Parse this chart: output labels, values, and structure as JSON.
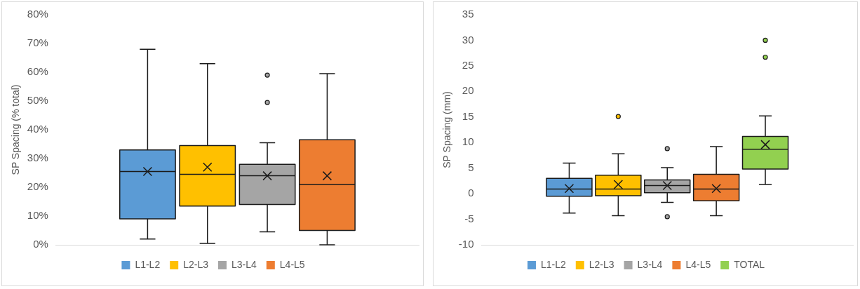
{
  "chart_data": [
    {
      "type": "box",
      "ylabel": "SP Spacing (% total)",
      "categories": [
        null
      ],
      "ylim": [
        0,
        80
      ],
      "yticks": [
        {
          "value": 0,
          "label": "0%"
        },
        {
          "value": 10,
          "label": "10%"
        },
        {
          "value": 20,
          "label": "20%"
        },
        {
          "value": 30,
          "label": "30%"
        },
        {
          "value": 40,
          "label": "40%"
        },
        {
          "value": 50,
          "label": "50%"
        },
        {
          "value": 60,
          "label": "60%"
        },
        {
          "value": 70,
          "label": "70%"
        },
        {
          "value": 80,
          "label": "80%"
        }
      ],
      "grid": false,
      "legend": "bottom",
      "tick_labels": "y",
      "series": [
        {
          "name": "L1-L2",
          "color": "#5b9bd5",
          "boxes": [
            {
              "low": 2,
              "q1": 9,
              "median": 25.5,
              "q3": 33,
              "high": 68,
              "mean": 25.5
            }
          ]
        },
        {
          "name": "L2-L3",
          "color": "#ffc000",
          "boxes": [
            {
              "low": 0.5,
              "q1": 13.5,
              "median": 24.5,
              "q3": 34.5,
              "high": 63,
              "mean": 27
            }
          ]
        },
        {
          "name": "L3-L4",
          "color": "#a5a5a5",
          "boxes": [
            {
              "low": 4.5,
              "q1": 14,
              "median": 24,
              "q3": 28,
              "high": 35.5,
              "mean": 24,
              "outliers": [
                49.5,
                59
              ]
            }
          ]
        },
        {
          "name": "L4-L5",
          "color": "#ed7d31",
          "boxes": [
            {
              "low": 0,
              "q1": 5,
              "median": 21,
              "q3": 36.5,
              "high": 59.5,
              "mean": 24
            }
          ]
        }
      ]
    },
    {
      "type": "box",
      "ylabel": "SP Spacing (mm)",
      "categories": [
        null
      ],
      "ylim": [
        -10,
        35
      ],
      "yticks": [
        -10,
        -5,
        0,
        5,
        10,
        15,
        20,
        25,
        30,
        35
      ],
      "grid": false,
      "legend": "bottom",
      "tick_labels": "y",
      "series": [
        {
          "name": "L1-L2",
          "color": "#5b9bd5",
          "boxes": [
            {
              "low": -3.8,
              "q1": -0.5,
              "median": 0.9,
              "q3": 3,
              "high": 6,
              "mean": 1
            }
          ]
        },
        {
          "name": "L2-L3",
          "color": "#ffc000",
          "boxes": [
            {
              "low": -4.3,
              "q1": -0.4,
              "median": 0.9,
              "q3": 3.6,
              "high": 7.8,
              "mean": 1.8,
              "outliers": [
                15.1
              ]
            }
          ]
        },
        {
          "name": "L3-L4",
          "color": "#a5a5a5",
          "boxes": [
            {
              "low": -1.7,
              "q1": 0.2,
              "median": 1.6,
              "q3": 2.7,
              "high": 5.1,
              "mean": 1.6,
              "outliers": [
                8.8,
                -4.5
              ]
            }
          ]
        },
        {
          "name": "L4-L5",
          "color": "#ed7d31",
          "boxes": [
            {
              "low": -4.3,
              "q1": -1.4,
              "median": 0.9,
              "q3": 3.8,
              "high": 9.2,
              "mean": 1
            }
          ]
        },
        {
          "name": "TOTAL",
          "color": "#92d050",
          "boxes": [
            {
              "low": 1.8,
              "q1": 4.8,
              "median": 8.7,
              "q3": 11.2,
              "high": 15.2,
              "mean": 9.6,
              "outliers": [
                26.7,
                30
              ]
            }
          ]
        }
      ]
    }
  ]
}
